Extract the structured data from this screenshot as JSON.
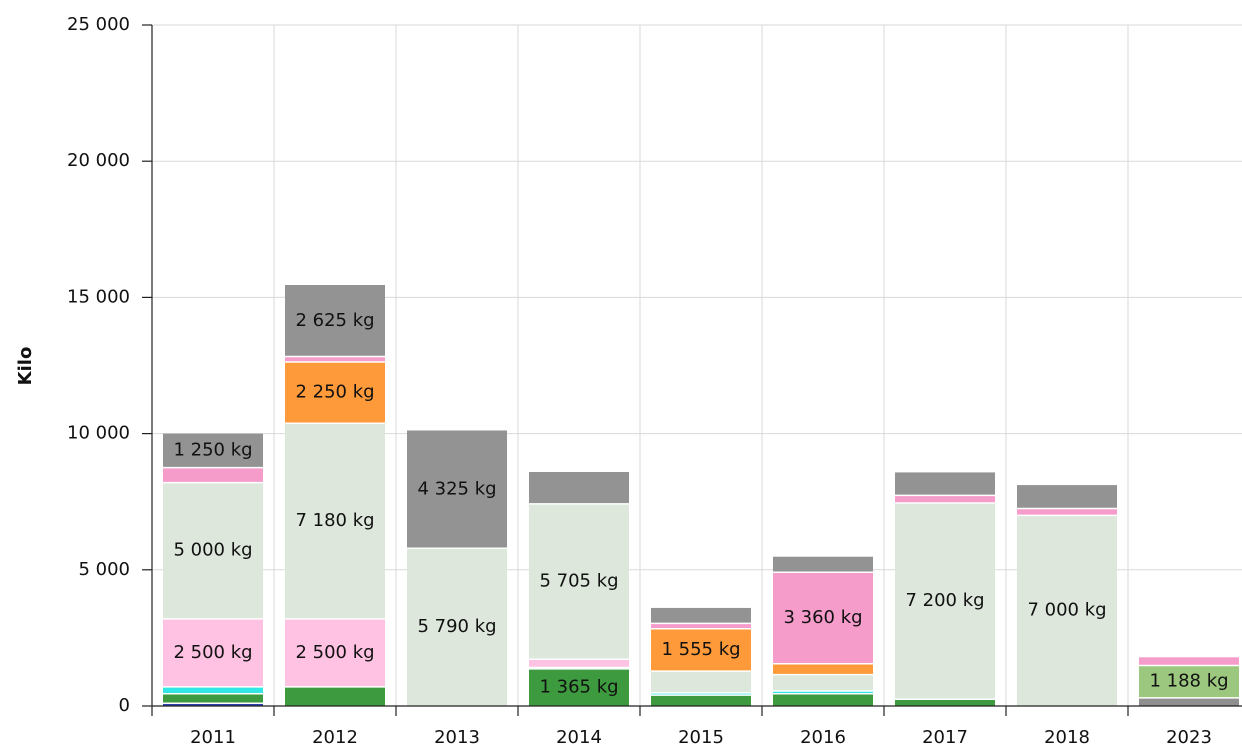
{
  "chart_data": {
    "type": "stacked_bar",
    "y_label": "Kilo",
    "categories": [
      "2011",
      "2012",
      "2013",
      "2014",
      "2015",
      "2016",
      "2017",
      "2018",
      "2023"
    ],
    "ylim": [
      0,
      25000
    ],
    "yticks": [
      {
        "value": 0,
        "label": "0"
      },
      {
        "value": 5000,
        "label": "5 000"
      },
      {
        "value": 10000,
        "label": "10 000"
      },
      {
        "value": 15000,
        "label": "15 000"
      },
      {
        "value": 20000,
        "label": "20 000"
      },
      {
        "value": 25000,
        "label": "25 000"
      }
    ],
    "grid": true,
    "series": [
      {
        "color": "#8f8f8f",
        "values": [
          null,
          null,
          null,
          null,
          null,
          null,
          null,
          null,
          300
        ],
        "value_labels": [
          null,
          null,
          null,
          null,
          null,
          null,
          null,
          null,
          null
        ]
      },
      {
        "color": "#2b3fb0",
        "values": [
          100,
          null,
          null,
          null,
          null,
          null,
          null,
          null,
          null
        ],
        "value_labels": [
          null,
          null,
          null,
          null,
          null,
          null,
          null,
          null,
          null
        ]
      },
      {
        "color": "#3e9a3e",
        "values": [
          350,
          700,
          null,
          1365,
          400,
          450,
          250,
          null,
          null
        ],
        "value_labels": [
          null,
          null,
          null,
          "1 365 kg",
          null,
          null,
          null,
          null,
          null
        ]
      },
      {
        "color": "#33e6e6",
        "values": [
          250,
          null,
          null,
          50,
          80,
          100,
          null,
          null,
          null
        ],
        "value_labels": [
          null,
          null,
          null,
          null,
          null,
          null,
          null,
          null,
          null
        ]
      },
      {
        "color": "#ffc2e2",
        "values": [
          2500,
          2500,
          null,
          300,
          null,
          null,
          null,
          null,
          null
        ],
        "value_labels": [
          "2 500 kg",
          "2 500 kg",
          null,
          null,
          null,
          null,
          null,
          null,
          null
        ]
      },
      {
        "color": "#dde7dc",
        "values": [
          5000,
          7180,
          5790,
          5705,
          800,
          600,
          7200,
          7000,
          null
        ],
        "value_labels": [
          "5 000 kg",
          "7 180 kg",
          "5 790 kg",
          "5 705 kg",
          null,
          null,
          "7 200 kg",
          "7 000 kg",
          null
        ]
      },
      {
        "color": "#ff9a3a",
        "values": [
          null,
          2250,
          null,
          null,
          1555,
          400,
          null,
          null,
          null
        ],
        "value_labels": [
          null,
          "2 250 kg",
          null,
          null,
          "1 555 kg",
          null,
          null,
          null,
          null
        ]
      },
      {
        "color": "#9cc77e",
        "values": [
          null,
          null,
          null,
          null,
          null,
          null,
          null,
          null,
          1188
        ],
        "value_labels": [
          null,
          null,
          null,
          null,
          null,
          null,
          null,
          null,
          "1 188 kg"
        ]
      },
      {
        "color": "#f59ccb",
        "values": [
          550,
          200,
          null,
          null,
          200,
          3360,
          280,
          250,
          300
        ],
        "value_labels": [
          null,
          null,
          null,
          null,
          null,
          "3 360 kg",
          null,
          null,
          null
        ]
      },
      {
        "color": "#939393",
        "values": [
          1250,
          2625,
          4325,
          1170,
          565,
          570,
          845,
          860,
          null
        ],
        "value_labels": [
          "1 250 kg",
          "2 625 kg",
          "4 325 kg",
          null,
          null,
          null,
          null,
          null,
          null
        ]
      }
    ]
  }
}
